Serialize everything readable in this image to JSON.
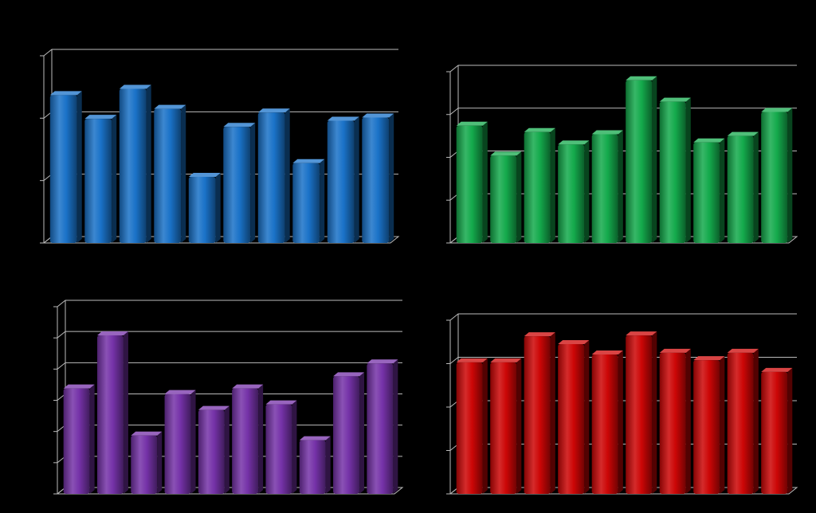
{
  "chart_data": [
    {
      "type": "bar",
      "categories": [
        null,
        null,
        null,
        null,
        null,
        null,
        null,
        null,
        null,
        null
      ],
      "values": [
        2.37,
        1.99,
        2.47,
        2.15,
        1.06,
        1.86,
        2.09,
        1.28,
        1.96,
        2.01
      ],
      "color": "#1a72c8",
      "ylim": [
        0,
        3
      ],
      "yticks": [
        0,
        1,
        2,
        3
      ],
      "grid": true
    },
    {
      "type": "bar",
      "categories": [
        null,
        null,
        null,
        null,
        null,
        null,
        null,
        null,
        null,
        null
      ],
      "values": [
        2.74,
        2.04,
        2.59,
        2.3,
        2.54,
        3.8,
        3.3,
        2.35,
        2.5,
        3.06
      ],
      "color": "#14aa4c",
      "ylim": [
        0,
        4
      ],
      "yticks": [
        0,
        1,
        2,
        3,
        4
      ],
      "grid": true
    },
    {
      "type": "bar",
      "categories": [
        null,
        null,
        null,
        null,
        null,
        null,
        null,
        null,
        null,
        null
      ],
      "values": [
        3.38,
        5.08,
        1.87,
        3.2,
        2.69,
        3.38,
        2.87,
        1.72,
        3.77,
        4.18
      ],
      "color": "#7532a8",
      "ylim": [
        0,
        6
      ],
      "yticks": [
        0,
        1,
        2,
        3,
        4,
        5,
        6
      ],
      "grid": true
    },
    {
      "type": "bar",
      "categories": [
        null,
        null,
        null,
        null,
        null,
        null,
        null,
        null,
        null,
        null
      ],
      "values": [
        3.03,
        3.03,
        3.63,
        3.45,
        3.21,
        3.65,
        3.25,
        3.08,
        3.25,
        2.81
      ],
      "color": "#cc0606",
      "ylim": [
        0,
        4
      ],
      "yticks": [
        0,
        1,
        2,
        3,
        4
      ],
      "grid": true
    }
  ]
}
